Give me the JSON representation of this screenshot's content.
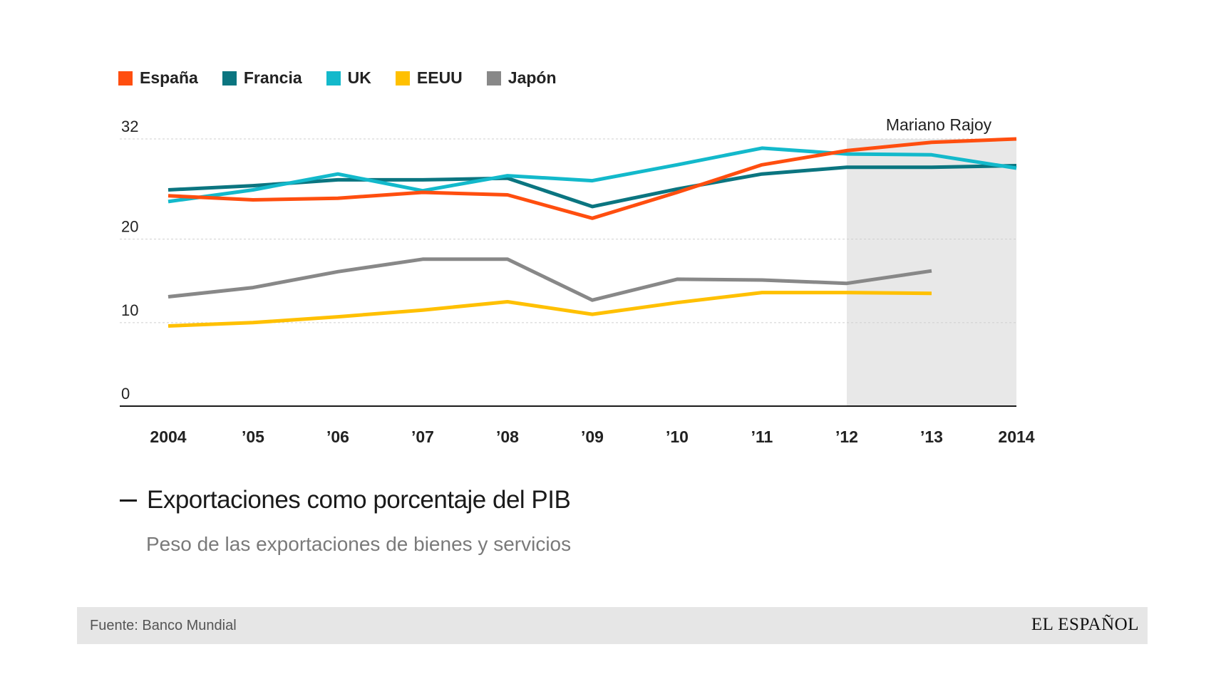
{
  "legend": [
    {
      "label": "España",
      "color": "#FF4E0F"
    },
    {
      "label": "Francia",
      "color": "#0B7580"
    },
    {
      "label": "UK",
      "color": "#13B9CB"
    },
    {
      "label": "EEUU",
      "color": "#FFC000"
    },
    {
      "label": "Japón",
      "color": "#888888"
    }
  ],
  "chart_data": {
    "type": "line",
    "categories": [
      "2004",
      "’05",
      "’06",
      "’07",
      "’08",
      "’09",
      "’10",
      "’11",
      "’12",
      "’13",
      "2014"
    ],
    "yticks": [
      0,
      10,
      20,
      32
    ],
    "ylim": [
      0,
      32
    ],
    "grid": true,
    "annotation": {
      "label": "Mariano Rajoy",
      "from_index": 8,
      "to_index": 10
    },
    "series": [
      {
        "name": "España",
        "color": "#FF4E0F",
        "values": [
          25.2,
          24.7,
          24.9,
          25.6,
          25.3,
          22.5,
          25.6,
          28.9,
          30.6,
          31.6,
          32.0
        ]
      },
      {
        "name": "Francia",
        "color": "#0B7580",
        "values": [
          25.9,
          26.4,
          27.1,
          27.1,
          27.3,
          23.9,
          26.0,
          27.8,
          28.6,
          28.6,
          28.8
        ]
      },
      {
        "name": "UK",
        "color": "#13B9CB",
        "values": [
          24.5,
          25.9,
          27.8,
          25.8,
          27.6,
          27.0,
          28.9,
          30.9,
          30.2,
          30.1,
          28.5
        ]
      },
      {
        "name": "EEUU",
        "color": "#FFC000",
        "values": [
          9.6,
          10.0,
          10.7,
          11.5,
          12.5,
          11.0,
          12.4,
          13.6,
          13.6,
          13.5,
          null
        ]
      },
      {
        "name": "Japón",
        "color": "#888888",
        "values": [
          13.1,
          14.2,
          16.1,
          17.6,
          17.6,
          12.7,
          15.2,
          15.1,
          14.7,
          16.2,
          null
        ]
      }
    ]
  },
  "title": "Exportaciones como porcentaje del PIB",
  "subtitle": "Peso de las exportaciones de bienes y servicios",
  "footer": {
    "source": "Fuente: Banco Mundial",
    "logo": "EL ESPAÑOL"
  }
}
